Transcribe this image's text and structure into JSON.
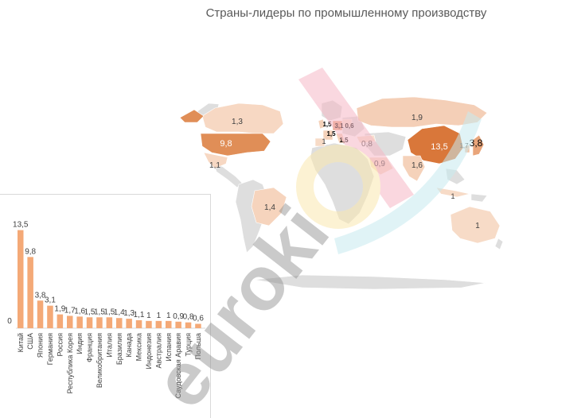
{
  "chart_data": [
    {
      "type": "map",
      "title": "Страны-лидеры по промышленному производству",
      "regions": [
        {
          "name": "Китай",
          "value": 13.5,
          "label": "13,5",
          "color": "#d9773a"
        },
        {
          "name": "США",
          "value": 9.8,
          "label": "9,8",
          "color": "#e08e57"
        },
        {
          "name": "Япония",
          "value": 3.8,
          "label": "3,8",
          "color": "#e9a57a"
        },
        {
          "name": "Канада",
          "value": 1.3,
          "label": "1,3",
          "color": "#f7d8c3"
        },
        {
          "name": "Россия",
          "value": 1.9,
          "label": "1,9",
          "color": "#f4cfb7"
        },
        {
          "name": "Мексика",
          "value": 1.1,
          "label": "1,1",
          "color": "#f7d8c3"
        },
        {
          "name": "Бразилия",
          "value": 1.4,
          "label": "1,4",
          "color": "#f6d4bd"
        },
        {
          "name": "Австралия",
          "value": 1,
          "label": "1",
          "color": "#f7dbc7"
        },
        {
          "name": "Индия",
          "value": 1.6,
          "label": "1,6",
          "color": "#f5d2ba"
        },
        {
          "name": "Саудовская Аравия",
          "value": 0.9,
          "label": "0,9",
          "color": "#f8ddca"
        },
        {
          "name": "Турция",
          "value": 0.8,
          "label": "0,8",
          "color": "#f8dfcd"
        },
        {
          "name": "Индонезия",
          "value": 1,
          "label": "1",
          "color": "#f7dbc7"
        },
        {
          "name": "Республика Корея",
          "value": 1.7,
          "label": "1,7",
          "color": "#f2c2a3"
        },
        {
          "name": "Германия",
          "value": 3.1,
          "label": "3,1",
          "color": "#eba884"
        },
        {
          "name": "Великобритания",
          "value": 1.5,
          "label": "1,5",
          "color": "#f5d2ba"
        },
        {
          "name": "Франция",
          "value": 1.5,
          "label": "1,5",
          "color": "#f5d2ba"
        },
        {
          "name": "Италия",
          "value": 1.5,
          "label": "1,5",
          "color": "#f5d2ba"
        },
        {
          "name": "Испания",
          "value": 1,
          "label": "1",
          "color": "#f7dbc7"
        },
        {
          "name": "Польша",
          "value": 0.6,
          "label": "0,6",
          "color": "#f9e3d4"
        }
      ]
    },
    {
      "type": "bar",
      "categories": [
        "Китай",
        "США",
        "Япония",
        "Германия",
        "Россия",
        "Республика Корея",
        "Индия",
        "Франция",
        "Великобритания",
        "Италия",
        "Бразилия",
        "Канада",
        "Мексика",
        "Индонезия",
        "Австралия",
        "Испания",
        "Саудовская Аравия",
        "Турция",
        "Польша"
      ],
      "values": [
        13.5,
        9.8,
        3.8,
        3.1,
        1.9,
        1.7,
        1.6,
        1.5,
        1.5,
        1.5,
        1.4,
        1.3,
        1.1,
        1,
        1,
        1,
        0.9,
        0.8,
        0.6
      ],
      "value_labels": [
        "13,5",
        "9,8",
        "3,8",
        "3,1",
        "1,9",
        "1,7",
        "1,6",
        "1,5",
        "1,5",
        "1,5",
        "1,4",
        "1,3",
        "1,1",
        "1",
        "1",
        "1",
        "0,9",
        "0,8",
        "0,6"
      ],
      "ylim": [
        0,
        14
      ],
      "zero_label": "0",
      "bar_color": "#f4a977"
    }
  ],
  "watermark": {
    "text": "euroki",
    "colors": [
      "#f4a7b9",
      "#fbe7a8",
      "#bfe8ee",
      "#7f7f7f"
    ]
  }
}
